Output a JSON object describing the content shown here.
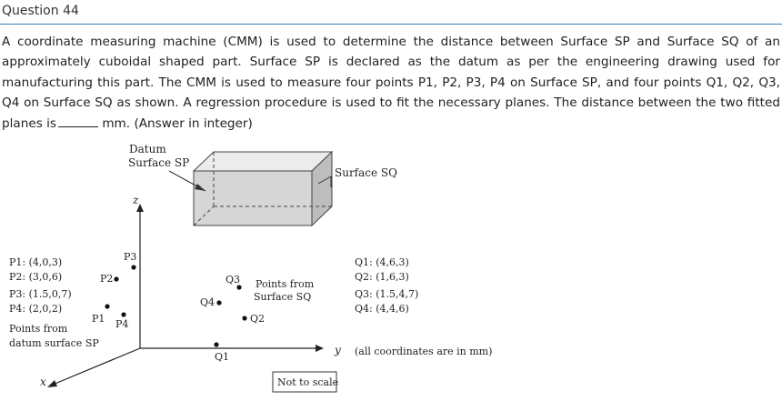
{
  "header": {
    "title": "Question 44"
  },
  "question": {
    "text_before_blank": "A coordinate measuring machine (CMM) is used to determine the distance between Surface SP and Surface SQ of an approximately cuboidal shaped part. Surface SP is declared as the datum as per the engineering drawing used for manufacturing this part. The CMM is used to measure four points P1, P2, P3, P4 on Surface SP, and four points Q1, Q2, Q3, Q4 on Surface SQ as shown. A regression procedure is used to fit the necessary planes. The distance between the two fitted planes is",
    "text_after_blank": "mm. (Answer in integer)"
  },
  "figure": {
    "datum_label_1": "Datum",
    "datum_label_2": "Surface SP",
    "surface_sq_label": "Surface SQ",
    "axis_z": "z",
    "axis_y": "y",
    "axis_x": "x",
    "p_points": [
      "P1: (4,0,3)",
      "P2: (3,0,6)",
      "P3: (1.5,0,7)",
      "P4: (2,0,2)"
    ],
    "p_caption_1": "Points from",
    "p_caption_2": "datum surface SP",
    "q_points": [
      "Q1: (4,6,3)",
      "Q2: (1,6,3)",
      "Q3: (1.5,4,7)",
      "Q4: (4,4,6)"
    ],
    "q_caption_1": "Points from",
    "q_caption_2": "Surface SQ",
    "units_note": "(all coordinates are in mm)",
    "scale_note": "Not to scale",
    "point_labels": {
      "p1": "P1",
      "p2": "P2",
      "p3": "P3",
      "p4": "P4",
      "q1": "Q1",
      "q2": "Q2",
      "q3": "Q3",
      "q4": "Q4"
    }
  }
}
